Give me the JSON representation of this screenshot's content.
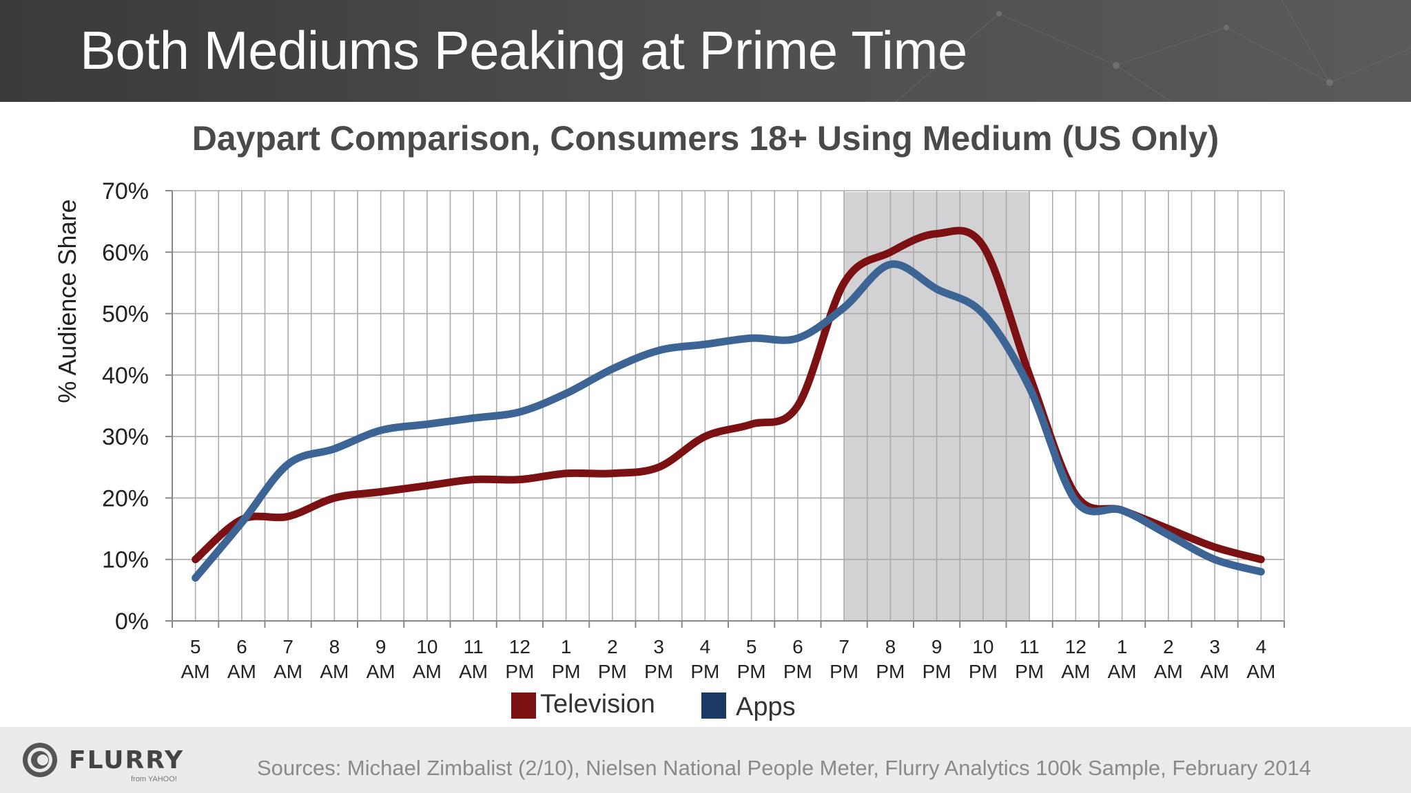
{
  "slide": {
    "title": "Both Mediums Peaking at Prime Time"
  },
  "chart_data": {
    "type": "line",
    "title": "Daypart Comparison, Consumers 18+ Using Medium (US Only)",
    "ylabel": "% Audience Share",
    "xlabel": "",
    "ylim": [
      0,
      70
    ],
    "ytick_labels": [
      "0%",
      "10%",
      "20%",
      "30%",
      "40%",
      "50%",
      "60%",
      "70%"
    ],
    "grid": true,
    "legend_position": "bottom",
    "categories": [
      [
        "5",
        "AM"
      ],
      [
        "6",
        "AM"
      ],
      [
        "7",
        "AM"
      ],
      [
        "8",
        "AM"
      ],
      [
        "9",
        "AM"
      ],
      [
        "10",
        "AM"
      ],
      [
        "11",
        "AM"
      ],
      [
        "12",
        "PM"
      ],
      [
        "1",
        "PM"
      ],
      [
        "2",
        "PM"
      ],
      [
        "3",
        "PM"
      ],
      [
        "4",
        "PM"
      ],
      [
        "5",
        "PM"
      ],
      [
        "6",
        "PM"
      ],
      [
        "7",
        "PM"
      ],
      [
        "8",
        "PM"
      ],
      [
        "9",
        "PM"
      ],
      [
        "10",
        "PM"
      ],
      [
        "11",
        "PM"
      ],
      [
        "12",
        "AM"
      ],
      [
        "1",
        "AM"
      ],
      [
        "2",
        "AM"
      ],
      [
        "3",
        "AM"
      ],
      [
        "4",
        "AM"
      ]
    ],
    "highlight": {
      "from_category": [
        "7",
        "PM"
      ],
      "to_category": [
        "11",
        "PM"
      ]
    },
    "series": [
      {
        "name": "Television",
        "color": "#7b1113",
        "values": [
          10,
          16.5,
          17,
          20,
          21,
          22,
          23,
          23,
          24,
          24,
          25,
          30,
          32,
          35,
          55,
          60,
          63,
          61,
          40,
          20.5,
          18,
          15,
          12,
          10
        ]
      },
      {
        "name": "Apps",
        "color": "#3c6595",
        "legend_color": "#1c3a64",
        "values": [
          7,
          16,
          25.5,
          28,
          31,
          32,
          33,
          34,
          37,
          41,
          44,
          45,
          46,
          46,
          51,
          58,
          54,
          50,
          38,
          19.5,
          18,
          14,
          10,
          8
        ]
      }
    ]
  },
  "footer": {
    "logo_text": "FLURRY",
    "logo_subtext": "from YAHOO!",
    "sources": "Sources: Michael Zimbalist (2/10), Nielsen National People Meter, Flurry Analytics 100k Sample, February 2014"
  },
  "colors": {
    "header_bg": "#474747",
    "footer_bg": "#ebebeb",
    "highlight_band": "#d0d0d2"
  }
}
